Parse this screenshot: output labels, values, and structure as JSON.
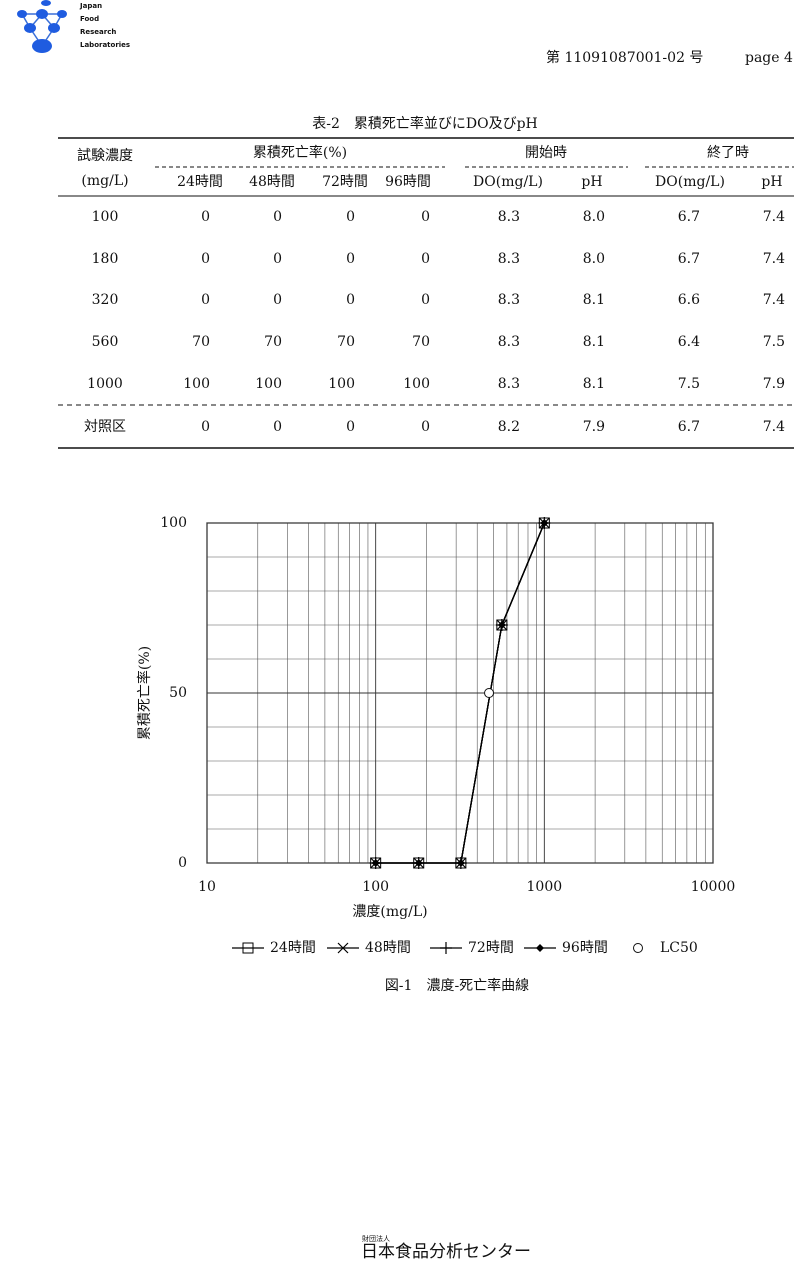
{
  "header": {
    "logo": [
      "Japan",
      "Food",
      "Research",
      "Laboratories"
    ],
    "doc_number": "第 11091087001-02 号",
    "page": "page 4"
  },
  "table": {
    "caption": "表-2　累積死亡率並びにDO及びpH",
    "head": {
      "conc": "試験濃度",
      "conc_unit": "(mg/L)",
      "mortality": "累積死亡率(%)",
      "hours": [
        "24時間",
        "48時間",
        "72時間",
        "96時間"
      ],
      "start": "開始時",
      "start_cols": [
        "DO(mg/L)",
        "pH"
      ],
      "end": "終了時",
      "end_cols": [
        "DO(mg/L)",
        "pH"
      ]
    },
    "rows": [
      [
        "100",
        "0",
        "0",
        "0",
        "0",
        "8.3",
        "8.0",
        "6.7",
        "7.4"
      ],
      [
        "180",
        "0",
        "0",
        "0",
        "0",
        "8.3",
        "8.0",
        "6.7",
        "7.4"
      ],
      [
        "320",
        "0",
        "0",
        "0",
        "0",
        "8.3",
        "8.1",
        "6.6",
        "7.4"
      ],
      [
        "560",
        "70",
        "70",
        "70",
        "70",
        "8.3",
        "8.1",
        "6.4",
        "7.5"
      ],
      [
        "1000",
        "100",
        "100",
        "100",
        "100",
        "8.3",
        "8.1",
        "7.5",
        "7.9"
      ],
      [
        "対照区",
        "0",
        "0",
        "0",
        "0",
        "8.2",
        "7.9",
        "6.7",
        "7.4"
      ]
    ]
  },
  "chart_data": {
    "type": "line",
    "xlabel": "濃度(mg/L)",
    "ylabel": "累積死亡率(%)",
    "caption": "図-1　濃度-死亡率曲線",
    "x": [
      100,
      180,
      320,
      560,
      1000
    ],
    "xscale": "log",
    "xlim": [
      10,
      10000
    ],
    "xticks": [
      10,
      100,
      1000,
      10000
    ],
    "ylim": [
      0,
      100
    ],
    "yticks": [
      0,
      50,
      100
    ],
    "grid": true,
    "xgrid": [
      20,
      30,
      40,
      50,
      60,
      70,
      80,
      90,
      200,
      300,
      400,
      500,
      600,
      700,
      800,
      900,
      2000,
      3000,
      4000,
      5000,
      6000,
      7000,
      8000,
      9000
    ],
    "ygrid": [
      10,
      20,
      30,
      40,
      60,
      70,
      80,
      90
    ],
    "series": [
      {
        "name": "24時間",
        "marker": "square",
        "color": "#000000",
        "values": [
          0,
          0,
          0,
          70,
          100
        ]
      },
      {
        "name": "48時間",
        "marker": "x",
        "color": "#000000",
        "values": [
          0,
          0,
          0,
          70,
          100
        ]
      },
      {
        "name": "72時間",
        "marker": "plus",
        "color": "#000000",
        "values": [
          0,
          0,
          0,
          70,
          100
        ]
      },
      {
        "name": "96時間",
        "marker": "diamond",
        "color": "#000000",
        "values": [
          0,
          0,
          0,
          70,
          100
        ]
      }
    ],
    "points": [
      {
        "name": "LC50",
        "marker": "circle",
        "x": 470,
        "y": 50
      }
    ]
  },
  "footer": {
    "org_type": "財団法人",
    "org": "日本食品分析センター"
  }
}
